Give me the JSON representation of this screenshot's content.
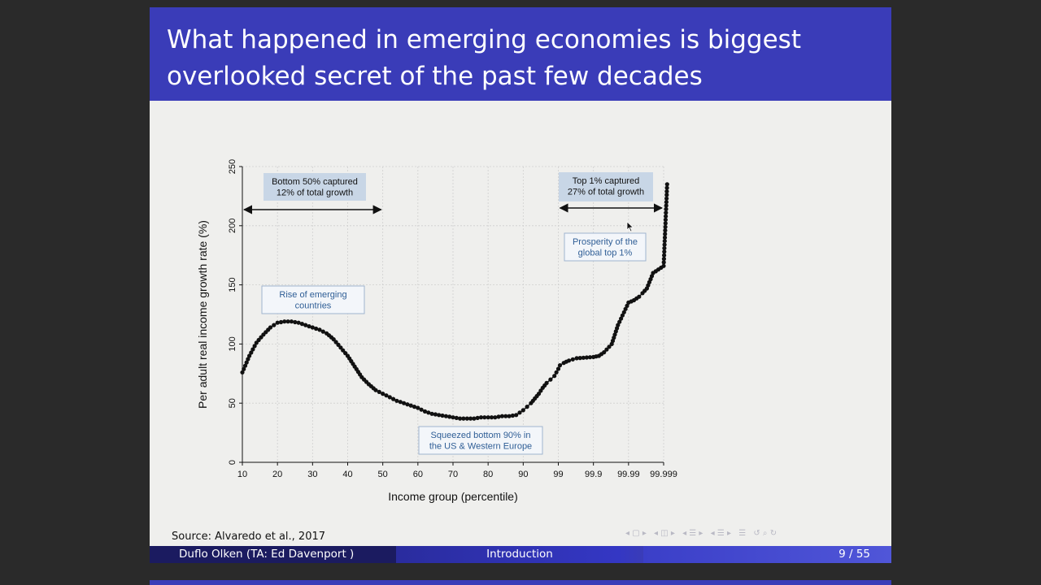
{
  "slide": {
    "title_line1": "What happened in emerging economies is biggest",
    "title_line2": "overlooked secret of the past few decades",
    "source": "Source: Alvaredo et al., 2017"
  },
  "footer": {
    "author": "Duflo Olken (TA: Ed Davenport )",
    "section": "Introduction",
    "page": "9 / 55"
  },
  "colors": {
    "header": "#3a3cb8",
    "annotation_fill": "#c8d6e6",
    "annotation_text": "#2f5e96",
    "line": "#111111"
  },
  "chart_data": {
    "type": "line",
    "xlabel": "Income group (percentile)",
    "ylabel": "Per adult real income growth rate (%)",
    "ylim": [
      0,
      250
    ],
    "yticks": [
      0,
      50,
      100,
      150,
      200,
      250
    ],
    "xticks": [
      "10",
      "20",
      "30",
      "40",
      "50",
      "60",
      "70",
      "80",
      "90",
      "99",
      "99.9",
      "99.99",
      "99.999"
    ],
    "grid": true,
    "series": [
      {
        "points": [
          [
            10,
            76
          ],
          [
            12,
            90
          ],
          [
            14,
            101
          ],
          [
            16,
            108
          ],
          [
            18,
            114
          ],
          [
            20,
            118
          ],
          [
            22,
            119
          ],
          [
            24,
            119
          ],
          [
            26,
            118
          ],
          [
            28,
            116
          ],
          [
            30,
            114
          ],
          [
            32,
            112
          ],
          [
            34,
            109
          ],
          [
            36,
            104
          ],
          [
            38,
            97
          ],
          [
            40,
            90
          ],
          [
            42,
            81
          ],
          [
            44,
            72
          ],
          [
            46,
            66
          ],
          [
            48,
            61
          ],
          [
            50,
            58
          ],
          [
            52,
            55
          ],
          [
            54,
            52
          ],
          [
            56,
            50
          ],
          [
            58,
            48
          ],
          [
            60,
            46
          ],
          [
            62,
            43
          ],
          [
            64,
            41
          ],
          [
            66,
            40
          ],
          [
            68,
            39
          ],
          [
            70,
            38
          ],
          [
            72,
            37
          ],
          [
            74,
            37
          ],
          [
            76,
            37
          ],
          [
            78,
            38
          ],
          [
            80,
            38
          ],
          [
            82,
            38
          ],
          [
            84,
            39
          ],
          [
            86,
            39
          ],
          [
            88,
            40
          ],
          [
            90,
            44
          ],
          [
            91,
            47
          ],
          [
            92,
            50
          ],
          [
            93,
            54
          ],
          [
            94,
            58
          ],
          [
            95,
            63
          ],
          [
            96,
            67
          ],
          [
            97,
            70
          ],
          [
            98,
            73
          ],
          [
            99,
            79
          ],
          [
            99.1,
            82
          ],
          [
            99.3,
            84
          ],
          [
            99.5,
            86
          ],
          [
            99.7,
            88
          ],
          [
            99.9,
            89
          ],
          [
            99.93,
            90
          ],
          [
            99.95,
            93
          ],
          [
            99.97,
            100
          ],
          [
            99.98,
            116
          ],
          [
            99.99,
            135
          ],
          [
            99.993,
            137
          ],
          [
            99.995,
            140
          ],
          [
            99.996,
            143
          ],
          [
            99.997,
            147
          ],
          [
            99.998,
            160
          ],
          [
            99.999,
            166
          ],
          [
            99.9995,
            235
          ]
        ]
      }
    ],
    "annotations": [
      "Bottom 50% captured\n12% of total growth",
      "Top 1% captured\n27% of total growth",
      "Rise of emerging\ncountries",
      "Prosperity of the\nglobal top 1%",
      "Squeezed bottom 90% in\nthe US & Western Europe"
    ],
    "bracket_bottom50": [
      10,
      50
    ],
    "bracket_top1": [
      99,
      99.999
    ]
  }
}
